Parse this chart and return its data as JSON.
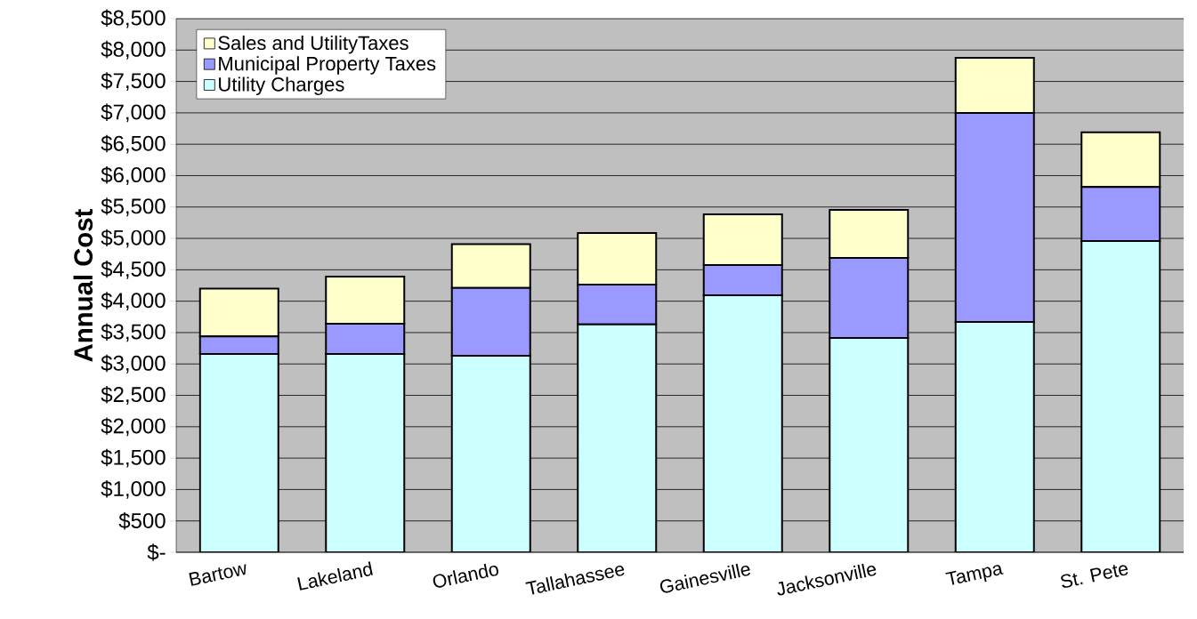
{
  "chart_data": {
    "type": "bar",
    "stacked": true,
    "ylabel": "Annual Cost",
    "categories": [
      "Bartow",
      "Lakeland",
      "Orlando",
      "Tallahassee",
      "Gainesville",
      "Jacksonville",
      "Tampa",
      "St. Pete"
    ],
    "series": [
      {
        "name": "Utility Charges",
        "color": "#ccffff",
        "values": [
          3160,
          3160,
          3130,
          3630,
          4095,
          3415,
          3670,
          4960
        ]
      },
      {
        "name": "Municipal Property Taxes",
        "color": "#9999ff",
        "values": [
          280,
          480,
          1080,
          635,
          480,
          1275,
          3330,
          860
        ]
      },
      {
        "name": "Sales and UtilityTaxes",
        "color": "#ffffcc",
        "values": [
          760,
          750,
          700,
          820,
          810,
          765,
          875,
          870
        ]
      }
    ],
    "ylim": [
      0,
      8500
    ],
    "yticks": [
      {
        "value": 0,
        "label": "$-"
      },
      {
        "value": 500,
        "label": "$500"
      },
      {
        "value": 1000,
        "label": "$1,000"
      },
      {
        "value": 1500,
        "label": "$1,500"
      },
      {
        "value": 2000,
        "label": "$2,000"
      },
      {
        "value": 2500,
        "label": "$2,500"
      },
      {
        "value": 3000,
        "label": "$3,000"
      },
      {
        "value": 3500,
        "label": "$3,500"
      },
      {
        "value": 4000,
        "label": "$4,000"
      },
      {
        "value": 4500,
        "label": "$4,500"
      },
      {
        "value": 5000,
        "label": "$5,000"
      },
      {
        "value": 5500,
        "label": "$5,500"
      },
      {
        "value": 6000,
        "label": "$6,000"
      },
      {
        "value": 6500,
        "label": "$6,500"
      },
      {
        "value": 7000,
        "label": "$7,000"
      },
      {
        "value": 7500,
        "label": "$7,500"
      },
      {
        "value": 8000,
        "label": "$8,000"
      },
      {
        "value": 8500,
        "label": "$8,500"
      }
    ],
    "grid": "y",
    "legend": "top left"
  }
}
